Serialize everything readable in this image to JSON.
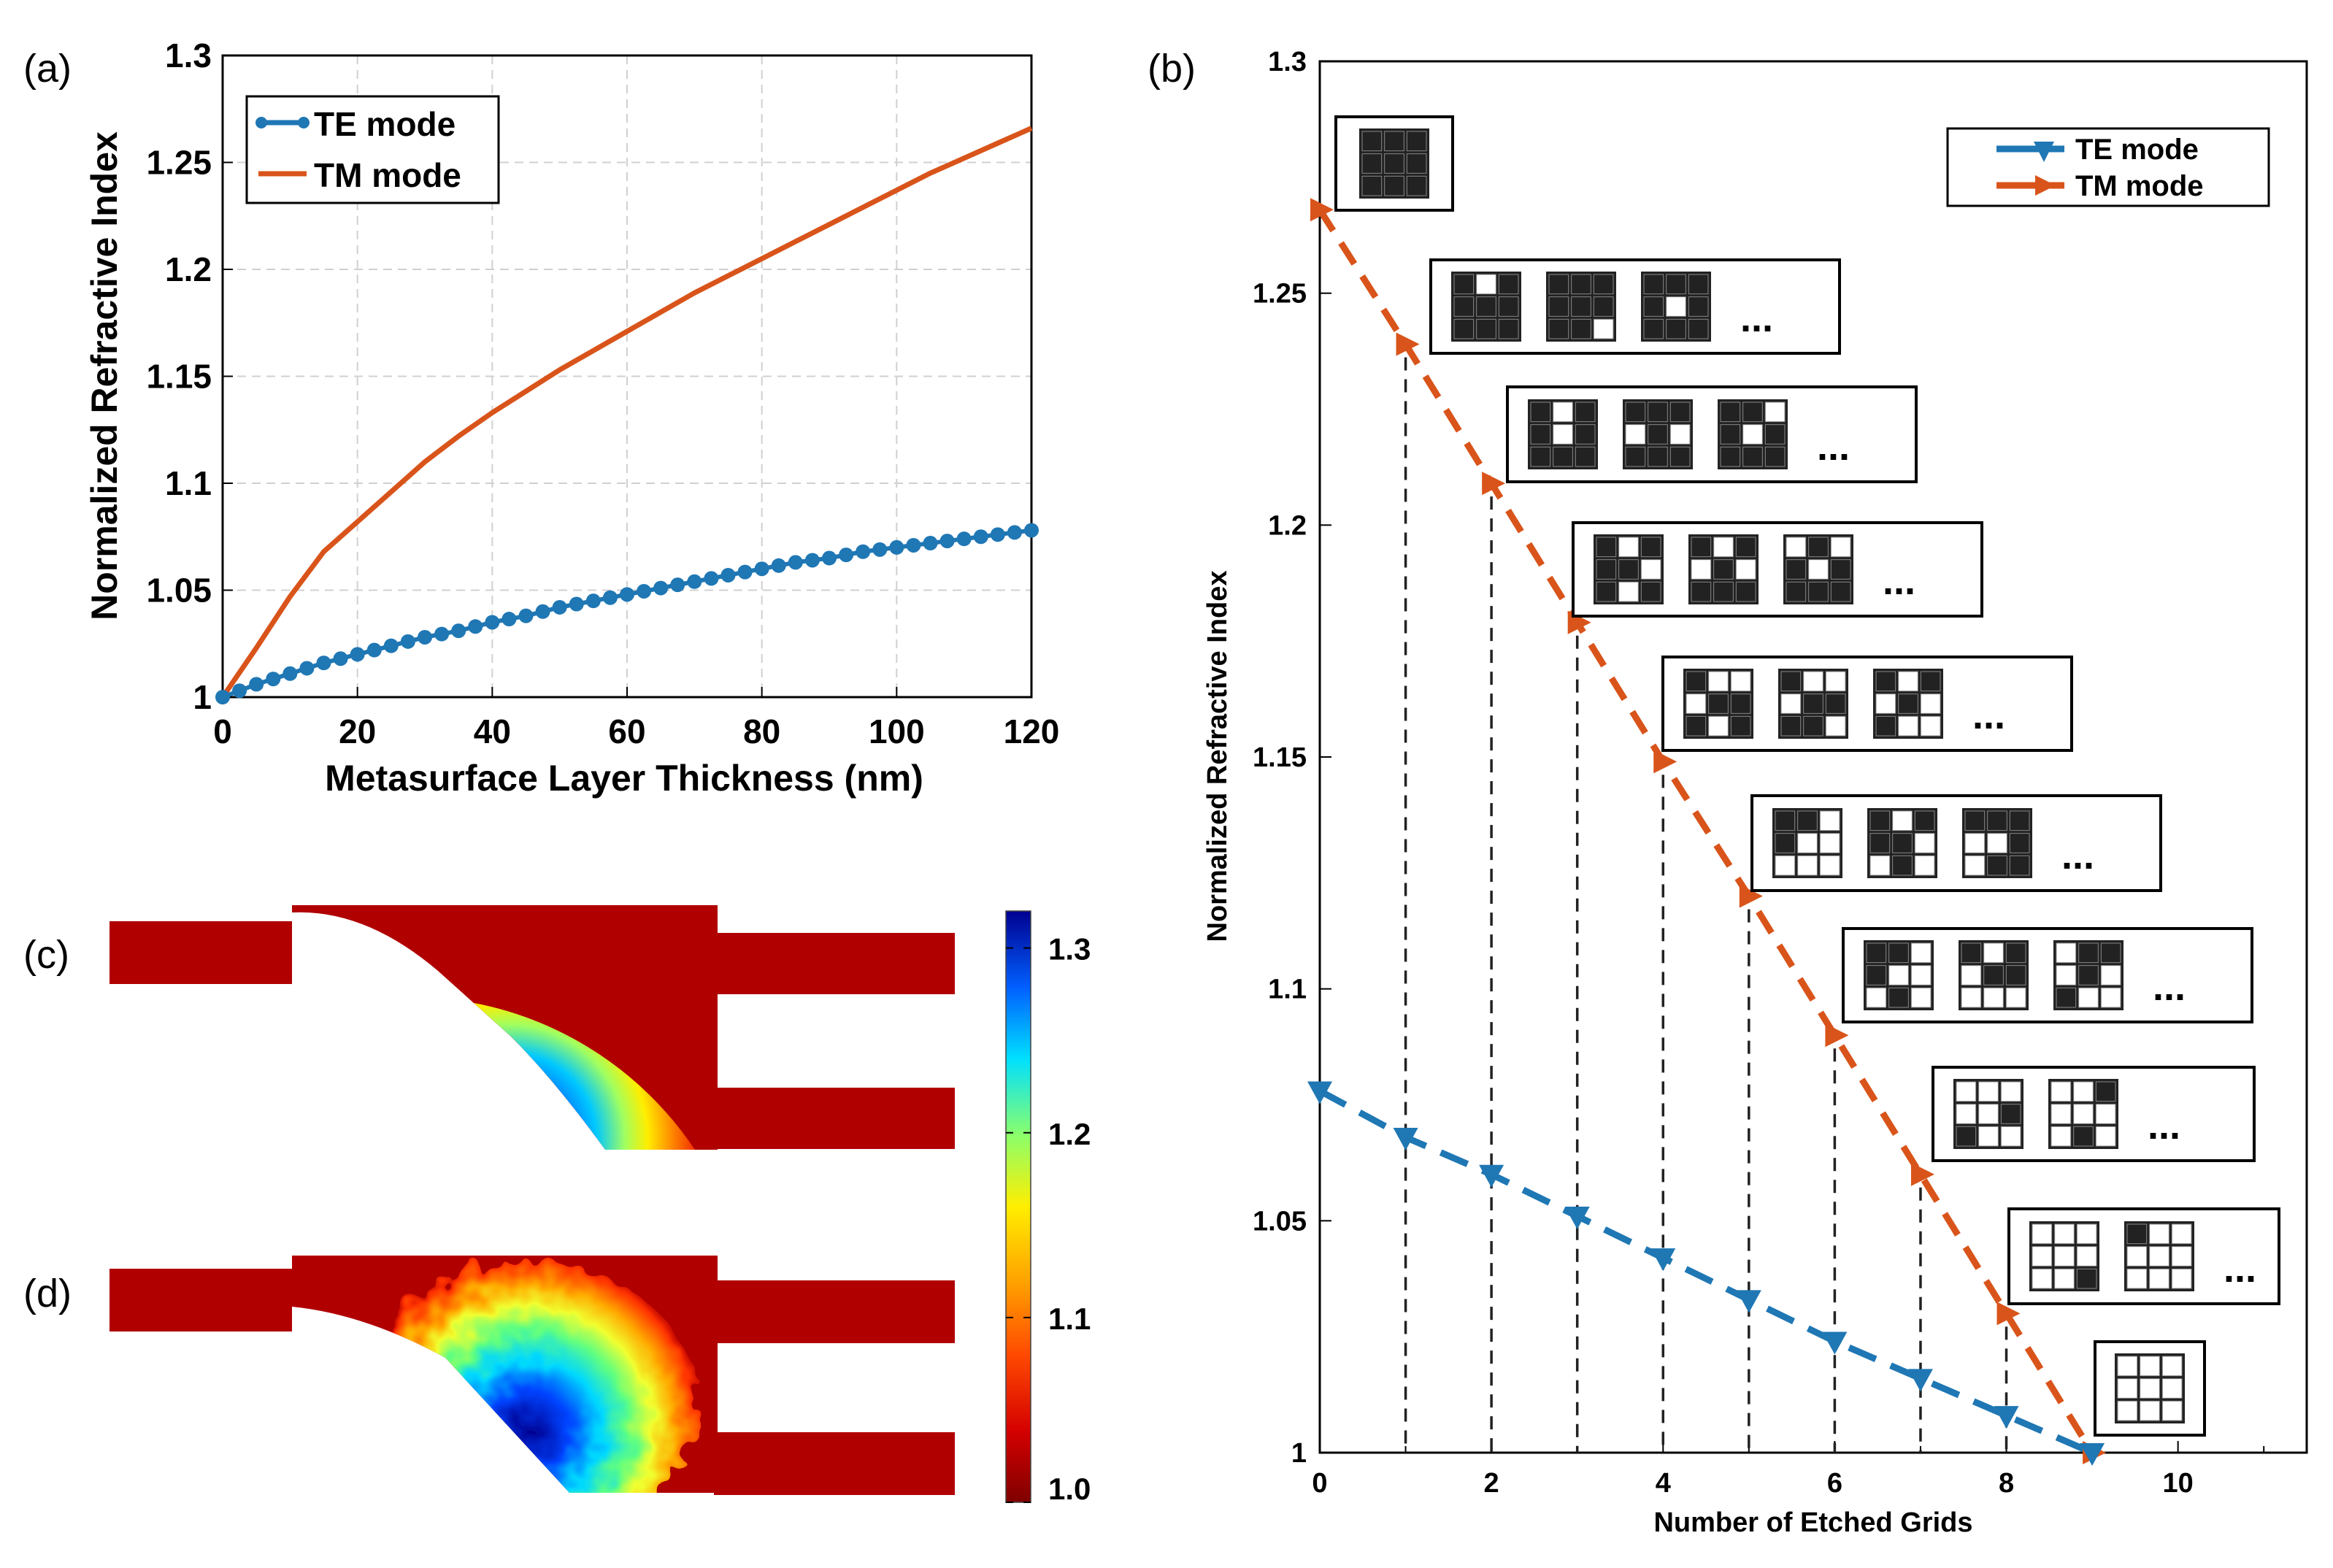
{
  "panels": {
    "a": {
      "label": "(a)"
    },
    "b": {
      "label": "(b)"
    },
    "c": {
      "label": "(c)"
    },
    "d": {
      "label": "(d)"
    }
  },
  "colors": {
    "te": "#1f77b4",
    "tm": "#d9541a",
    "grid": "#d0d0d0",
    "device": "#b00000"
  },
  "colorbar": {
    "ticks": [
      "1.3",
      "1.2",
      "1.1",
      "1.0"
    ],
    "values": [
      1.3,
      1.2,
      1.1,
      1.0
    ],
    "min": 1.0,
    "max": 1.32
  },
  "chart_data": [
    {
      "id": "a",
      "type": "line",
      "title": "",
      "xlabel": "Metasurface Layer Thickness (nm)",
      "ylabel": "Normalized Refractive Index",
      "xlim": [
        0,
        120
      ],
      "ylim": [
        1,
        1.3
      ],
      "xticks": [
        "0",
        "20",
        "40",
        "60",
        "80",
        "100",
        "120"
      ],
      "yticks": [
        "1",
        "1.05",
        "1.1",
        "1.15",
        "1.2",
        "1.25",
        "1.3"
      ],
      "grid": true,
      "legend_position": "top-left",
      "series": [
        {
          "name": "TE mode",
          "x": [
            0,
            5,
            10,
            15,
            20,
            25,
            30,
            35,
            40,
            45,
            50,
            55,
            60,
            65,
            70,
            75,
            80,
            85,
            90,
            95,
            100,
            105,
            110,
            115,
            120
          ],
          "y": [
            1.0,
            1.006,
            1.011,
            1.016,
            1.02,
            1.024,
            1.028,
            1.031,
            1.035,
            1.038,
            1.042,
            1.045,
            1.048,
            1.051,
            1.054,
            1.057,
            1.06,
            1.063,
            1.065,
            1.068,
            1.07,
            1.072,
            1.074,
            1.076,
            1.078
          ]
        },
        {
          "name": "TM mode",
          "x": [
            0,
            5,
            10,
            15,
            20,
            25,
            30,
            35,
            40,
            45,
            50,
            55,
            60,
            65,
            70,
            75,
            80,
            85,
            90,
            95,
            100,
            105,
            110,
            115,
            120
          ],
          "y": [
            1.0,
            1.023,
            1.047,
            1.068,
            1.082,
            1.096,
            1.11,
            1.122,
            1.133,
            1.143,
            1.153,
            1.162,
            1.171,
            1.18,
            1.189,
            1.197,
            1.205,
            1.213,
            1.221,
            1.229,
            1.237,
            1.245,
            1.252,
            1.259,
            1.266
          ]
        }
      ]
    },
    {
      "id": "b",
      "type": "line",
      "title": "",
      "xlabel": "Number of Etched Grids",
      "ylabel": "Normalized Refractive Index",
      "xlim": [
        0,
        11.5
      ],
      "ylim": [
        1,
        1.3
      ],
      "xticks": [
        "0",
        "2",
        "4",
        "6",
        "8",
        "10"
      ],
      "yticks": [
        "1",
        "1.05",
        "1.1",
        "1.15",
        "1.2",
        "1.25",
        "1.3"
      ],
      "grid": false,
      "legend_position": "top-right",
      "series": [
        {
          "name": "TE mode",
          "x": [
            0,
            1,
            2,
            3,
            4,
            5,
            6,
            7,
            8,
            9
          ],
          "y": [
            1.078,
            1.068,
            1.06,
            1.051,
            1.042,
            1.033,
            1.024,
            1.016,
            1.008,
            1.0
          ]
        },
        {
          "name": "TM mode",
          "x": [
            0,
            1,
            2,
            3,
            4,
            5,
            6,
            7,
            8,
            9
          ],
          "y": [
            1.268,
            1.239,
            1.209,
            1.179,
            1.149,
            1.12,
            1.09,
            1.06,
            1.03,
            1.0
          ]
        }
      ],
      "insets": [
        {
          "patterns": [
            "111111111"
          ],
          "ellipsis": ""
        },
        {
          "patterns": [
            "101111111",
            "111111110",
            "111101111"
          ],
          "ellipsis": "..."
        },
        {
          "patterns": [
            "101101111",
            "111010111",
            "110101111"
          ],
          "ellipsis": "..."
        },
        {
          "patterns": [
            "101110101",
            "101010111",
            "010101111"
          ],
          "ellipsis": "..."
        },
        {
          "patterns": [
            "100011101",
            "100011110",
            "101010100"
          ],
          "ellipsis": "..."
        },
        {
          "patterns": [
            "110100000",
            "101110010",
            "111001011"
          ],
          "ellipsis": "..."
        },
        {
          "patterns": [
            "110100010",
            "101011000",
            "011010100"
          ],
          "ellipsis": "..."
        },
        {
          "patterns": [
            "000001100",
            "001000010"
          ],
          "ellipsis": "..."
        },
        {
          "patterns": [
            "000000001",
            "100000000"
          ],
          "ellipsis": "..."
        },
        {
          "patterns": [
            "000000000"
          ],
          "ellipsis": ""
        }
      ]
    }
  ]
}
